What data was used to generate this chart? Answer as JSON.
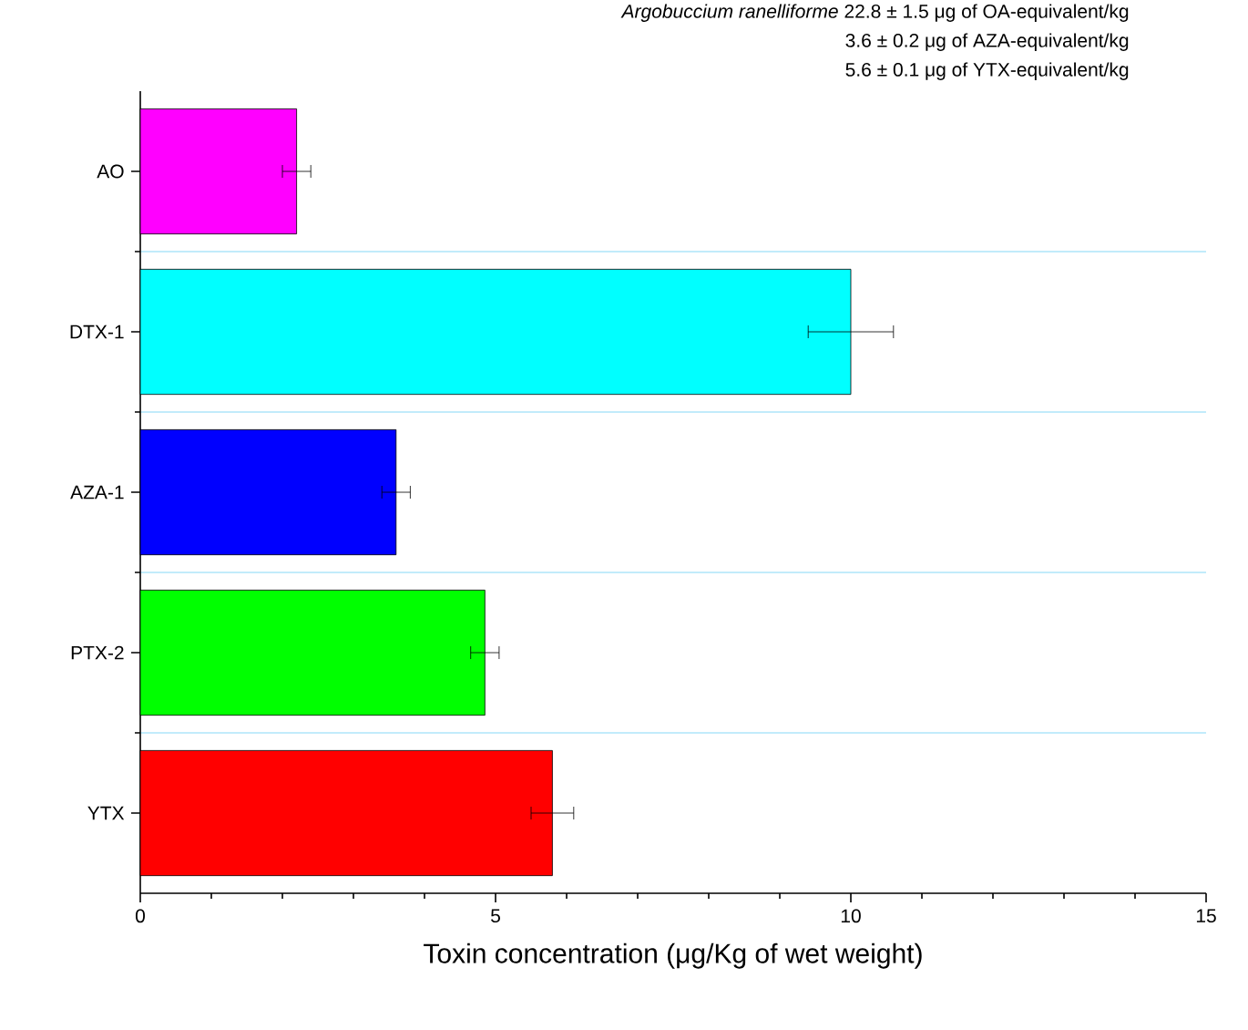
{
  "chart_data": {
    "type": "bar",
    "orientation": "horizontal",
    "categories": [
      "AO",
      "DTX-1",
      "AZA-1",
      "PTX-2",
      "YTX"
    ],
    "values": [
      2.2,
      10.0,
      3.6,
      4.85,
      5.8
    ],
    "errors": [
      0.2,
      0.6,
      0.2,
      0.2,
      0.3
    ],
    "colors": [
      "#ff00ff",
      "#00ffff",
      "#0000ff",
      "#00ff00",
      "#ff0000"
    ],
    "xlim": [
      0,
      15
    ],
    "xticks": [
      0,
      5,
      10,
      15
    ],
    "xlabel": "Toxin concentration (μg/Kg of wet weight)",
    "grid": "y",
    "annotations": [
      "*Argobuccium ranelliforme*  22.8 ± 1.5 μg of OA-equivalent/kg",
      "3.6 ± 0.2 μg of AZA-equivalent/kg",
      "5.6 ± 0.1 μg of YTX-equivalent/kg"
    ]
  }
}
